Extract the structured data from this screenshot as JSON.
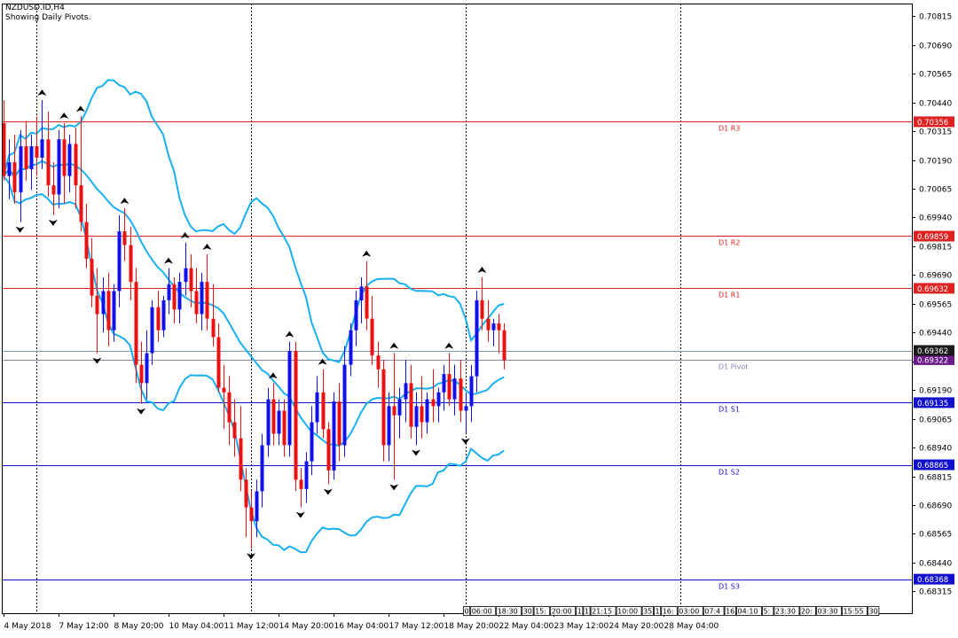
{
  "header": {
    "symbol_line": "NZDUSD.ID,H4",
    "subtitle": "Showing Daily Pivots."
  },
  "colors": {
    "bull": "#1010ee",
    "bear": "#ee1010",
    "band": "#18b0f0",
    "resistance": "#dd2222",
    "support": "#1010cc",
    "pivot": "#9080b8",
    "grid": "#000000",
    "fractal": "#000000",
    "price_tag_bg": "#1a1a1a",
    "pivot_tag_bg": "#6a1a8a"
  },
  "chart_data": {
    "type": "candlestick",
    "symbol": "NZDUSD.ID",
    "timeframe": "H4",
    "ylim": [
      0.6822,
      0.7087
    ],
    "y_ticks": [
      "0.70815",
      "0.70690",
      "0.70565",
      "0.70440",
      "0.70315",
      "0.70190",
      "0.70065",
      "0.69940",
      "0.69815",
      "0.69690",
      "0.69565",
      "0.69440",
      "0.69315",
      "0.69190",
      "0.69065",
      "0.68940",
      "0.68815",
      "0.68690",
      "0.68565",
      "0.68440",
      "0.68315"
    ],
    "x_labels": [
      {
        "bar": 0,
        "text": "4 May 2018"
      },
      {
        "bar": 10,
        "text": "7 May 12:00"
      },
      {
        "bar": 20,
        "text": "8 May 20:00"
      },
      {
        "bar": 30,
        "text": "10 May 04:00"
      },
      {
        "bar": 40,
        "text": "11 May 12:00"
      },
      {
        "bar": 50,
        "text": "14 May 20:00"
      },
      {
        "bar": 60,
        "text": "16 May 04:00"
      },
      {
        "bar": 70,
        "text": "17 May 12:00"
      },
      {
        "bar": 80,
        "text": "18 May 20:00"
      },
      {
        "bar": 90,
        "text": "22 May 04:00"
      },
      {
        "bar": 100,
        "text": "23 May 12:00"
      },
      {
        "bar": 110,
        "text": "24 May 20:00"
      },
      {
        "bar": 120,
        "text": "28 May 04:00"
      }
    ],
    "period_separators_bars": [
      6,
      45,
      84,
      123
    ],
    "pivot_levels": [
      {
        "name": "D1 R3",
        "value": 0.70356,
        "tag": "0.70356",
        "kind": "resistance"
      },
      {
        "name": "D1 R2",
        "value": 0.69859,
        "tag": "0.69859",
        "kind": "resistance"
      },
      {
        "name": "D1 R1",
        "value": 0.69632,
        "tag": "0.69632",
        "kind": "resistance"
      },
      {
        "name": "D1 Pivot",
        "value": 0.69322,
        "tag": "0.69322",
        "kind": "pivot"
      },
      {
        "name": "D1 S1",
        "value": 0.69135,
        "tag": "0.69135",
        "kind": "support"
      },
      {
        "name": "D1 S2",
        "value": 0.68865,
        "tag": "0.68865",
        "kind": "support"
      },
      {
        "name": "D1 S3",
        "value": 0.68368,
        "tag": "0.68368",
        "kind": "support"
      }
    ],
    "current_price": {
      "value": 0.69362,
      "tag": "0.69362"
    },
    "bottom_time_labels": [
      "0",
      "06:00",
      "18:30",
      "30",
      "15:",
      "20:00",
      "1",
      "1",
      "21:15",
      "10:00",
      "35",
      "1",
      "16:",
      "03:00",
      "07:4",
      "16",
      "04:10",
      "5:",
      "23:30",
      "20:",
      "03:30",
      "15:55",
      "30"
    ],
    "ohlc": [
      [
        0.7035,
        0.7045,
        0.701,
        0.7012
      ],
      [
        0.7012,
        0.7028,
        0.7002,
        0.7018
      ],
      [
        0.7018,
        0.703,
        0.7,
        0.7005
      ],
      [
        0.7005,
        0.7032,
        0.6992,
        0.7025
      ],
      [
        0.7025,
        0.7036,
        0.701,
        0.7015
      ],
      [
        0.7015,
        0.703,
        0.7006,
        0.7025
      ],
      [
        0.7025,
        0.7038,
        0.7012,
        0.702
      ],
      [
        0.702,
        0.7045,
        0.7015,
        0.7028
      ],
      [
        0.7028,
        0.704,
        0.7003,
        0.7008
      ],
      [
        0.7008,
        0.7018,
        0.6995,
        0.7004
      ],
      [
        0.7004,
        0.7032,
        0.6998,
        0.7028
      ],
      [
        0.7028,
        0.7035,
        0.7,
        0.7012
      ],
      [
        0.7012,
        0.703,
        0.7005,
        0.7026
      ],
      [
        0.7026,
        0.7033,
        0.6998,
        0.7008
      ],
      [
        0.7008,
        0.7038,
        0.6988,
        0.6992
      ],
      [
        0.6992,
        0.7,
        0.6972,
        0.6976
      ],
      [
        0.6976,
        0.6985,
        0.6955,
        0.696
      ],
      [
        0.696,
        0.6972,
        0.6935,
        0.6952
      ],
      [
        0.6952,
        0.6968,
        0.6944,
        0.6962
      ],
      [
        0.6962,
        0.697,
        0.6938,
        0.6945
      ],
      [
        0.6945,
        0.6965,
        0.694,
        0.6962
      ],
      [
        0.6962,
        0.6995,
        0.6955,
        0.6988
      ],
      [
        0.6988,
        0.6998,
        0.6975,
        0.6982
      ],
      [
        0.6982,
        0.699,
        0.6958,
        0.6966
      ],
      [
        0.6966,
        0.6972,
        0.6922,
        0.693
      ],
      [
        0.693,
        0.694,
        0.6913,
        0.6922
      ],
      [
        0.6922,
        0.6945,
        0.6915,
        0.6935
      ],
      [
        0.6935,
        0.6958,
        0.693,
        0.6955
      ],
      [
        0.6955,
        0.6962,
        0.694,
        0.6945
      ],
      [
        0.6945,
        0.696,
        0.6942,
        0.6958
      ],
      [
        0.6958,
        0.6972,
        0.6952,
        0.6965
      ],
      [
        0.6965,
        0.6968,
        0.6948,
        0.6954
      ],
      [
        0.6954,
        0.697,
        0.6948,
        0.6966
      ],
      [
        0.6966,
        0.6983,
        0.696,
        0.6972
      ],
      [
        0.6972,
        0.6978,
        0.6955,
        0.6962
      ],
      [
        0.6962,
        0.6972,
        0.6948,
        0.6952
      ],
      [
        0.6952,
        0.697,
        0.6945,
        0.6966
      ],
      [
        0.6966,
        0.6978,
        0.6945,
        0.695
      ],
      [
        0.695,
        0.6965,
        0.6938,
        0.6942
      ],
      [
        0.6942,
        0.6948,
        0.6918,
        0.692
      ],
      [
        0.692,
        0.693,
        0.6902,
        0.6918
      ],
      [
        0.6918,
        0.6925,
        0.6895,
        0.6905
      ],
      [
        0.6905,
        0.6915,
        0.689,
        0.6898
      ],
      [
        0.6898,
        0.6912,
        0.6875,
        0.688
      ],
      [
        0.688,
        0.6885,
        0.6855,
        0.6868
      ],
      [
        0.6868,
        0.6875,
        0.685,
        0.6862
      ],
      [
        0.6862,
        0.688,
        0.6855,
        0.6875
      ],
      [
        0.6875,
        0.69,
        0.6868,
        0.6895
      ],
      [
        0.6895,
        0.692,
        0.689,
        0.6915
      ],
      [
        0.6915,
        0.6922,
        0.6895,
        0.69
      ],
      [
        0.69,
        0.6915,
        0.6895,
        0.691
      ],
      [
        0.691,
        0.6915,
        0.689,
        0.6895
      ],
      [
        0.6895,
        0.694,
        0.689,
        0.6936
      ],
      [
        0.6936,
        0.694,
        0.6875,
        0.688
      ],
      [
        0.688,
        0.6885,
        0.6868,
        0.6876
      ],
      [
        0.6876,
        0.6892,
        0.687,
        0.6888
      ],
      [
        0.6888,
        0.6912,
        0.6882,
        0.6905
      ],
      [
        0.6905,
        0.6925,
        0.69,
        0.6918
      ],
      [
        0.6918,
        0.6928,
        0.6898,
        0.6902
      ],
      [
        0.6902,
        0.6905,
        0.6878,
        0.6884
      ],
      [
        0.6884,
        0.6918,
        0.688,
        0.6914
      ],
      [
        0.6914,
        0.6922,
        0.6888,
        0.6895
      ],
      [
        0.6895,
        0.6938,
        0.689,
        0.693
      ],
      [
        0.693,
        0.6948,
        0.6925,
        0.6945
      ],
      [
        0.6945,
        0.6962,
        0.6938,
        0.6958
      ],
      [
        0.6958,
        0.6968,
        0.6948,
        0.6964
      ],
      [
        0.6964,
        0.6975,
        0.6945,
        0.695
      ],
      [
        0.695,
        0.696,
        0.693,
        0.6934
      ],
      [
        0.6934,
        0.694,
        0.692,
        0.6928
      ],
      [
        0.6928,
        0.6932,
        0.6888,
        0.6895
      ],
      [
        0.6895,
        0.6918,
        0.6888,
        0.6912
      ],
      [
        0.6912,
        0.6935,
        0.688,
        0.6908
      ],
      [
        0.6908,
        0.692,
        0.6898,
        0.6915
      ],
      [
        0.6915,
        0.6932,
        0.6905,
        0.6922
      ],
      [
        0.6922,
        0.693,
        0.6898,
        0.6903
      ],
      [
        0.6903,
        0.6918,
        0.6895,
        0.6912
      ],
      [
        0.6912,
        0.6925,
        0.6898,
        0.6905
      ],
      [
        0.6905,
        0.6918,
        0.69,
        0.6915
      ],
      [
        0.6915,
        0.6928,
        0.6905,
        0.6912
      ],
      [
        0.6912,
        0.692,
        0.6905,
        0.6918
      ],
      [
        0.6918,
        0.693,
        0.691,
        0.6926
      ],
      [
        0.6926,
        0.6935,
        0.6912,
        0.6915
      ],
      [
        0.6915,
        0.693,
        0.6908,
        0.6924
      ],
      [
        0.6924,
        0.6932,
        0.6905,
        0.691
      ],
      [
        0.691,
        0.6918,
        0.69,
        0.6912
      ],
      [
        0.6912,
        0.693,
        0.6905,
        0.6925
      ],
      [
        0.6925,
        0.6962,
        0.6918,
        0.6958
      ],
      [
        0.6958,
        0.6968,
        0.6945,
        0.695
      ],
      [
        0.695,
        0.6958,
        0.694,
        0.6945
      ],
      [
        0.6945,
        0.695,
        0.6938,
        0.6948
      ],
      [
        0.6948,
        0.6952,
        0.6935,
        0.6945
      ],
      [
        0.6945,
        0.6948,
        0.6928,
        0.6932
      ]
    ]
  }
}
